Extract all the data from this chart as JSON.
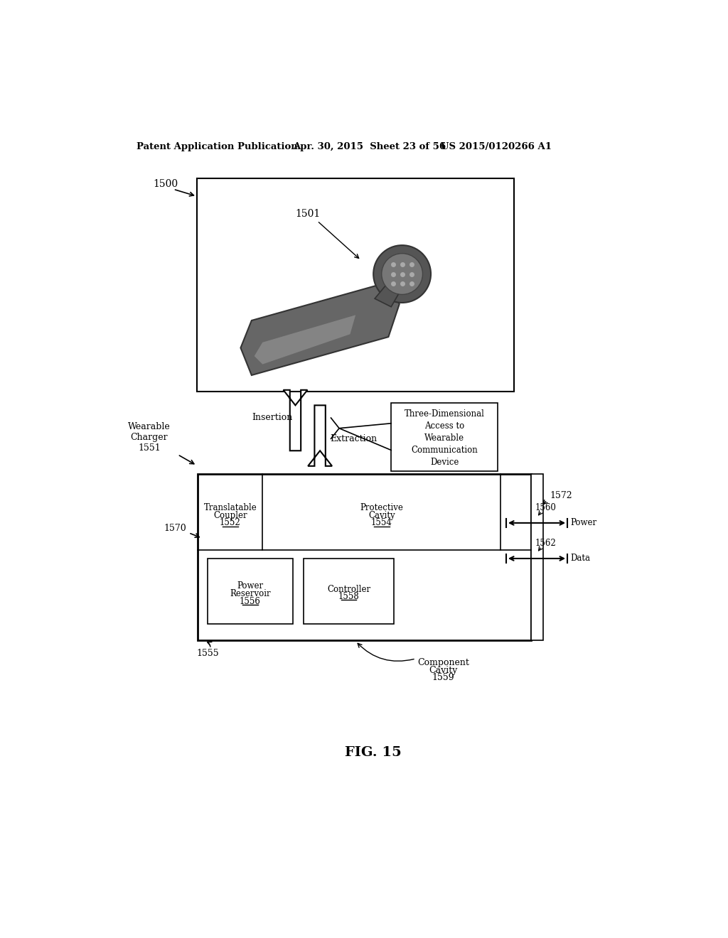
{
  "header_left": "Patent Application Publication",
  "header_mid": "Apr. 30, 2015  Sheet 23 of 56",
  "header_right": "US 2015/0120266 A1",
  "fig_label": "FIG. 15",
  "fig_number": "1500",
  "device_label": "1501",
  "wearable_charger_label": "Wearable\nCharger\n1551",
  "insertion_label": "Insertion",
  "extraction_label": "Extraction",
  "three_d_label": "Three-Dimensional\nAccess to\nWearable\nCommunication\nDevice",
  "label_1570": "1570",
  "translatable_line1": "Translatable",
  "translatable_line2": "Coupler",
  "translatable_line3": "1552",
  "protective_line1": "Protective",
  "protective_line2": "Cavity",
  "protective_line3": "1554",
  "power_res_line1": "Power",
  "power_res_line2": "Reservoir",
  "power_res_line3": "1556",
  "controller_line1": "Controller",
  "controller_line2": "1558",
  "label_1572": "1572",
  "label_1560": "1560",
  "label_power": "Power",
  "label_1562": "1562",
  "label_data": "Data",
  "label_1555": "1555",
  "label_comp_cav_1": "Component",
  "label_comp_cav_2": "Cavity",
  "label_comp_cav_3": "1559",
  "bg_color": "#ffffff",
  "line_color": "#000000"
}
